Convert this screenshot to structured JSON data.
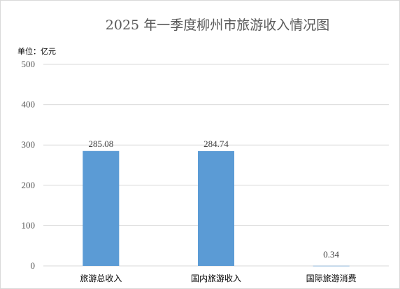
{
  "chart_data": {
    "type": "bar",
    "title": "2025 年一季度柳州市旅游收入情况图",
    "unit_label": "单位：亿元",
    "categories": [
      "旅游总收入",
      "国内旅游收入",
      "国际旅游消费"
    ],
    "values": [
      285.08,
      284.74,
      0.34
    ],
    "data_labels": [
      "285.08",
      "284.74",
      "0.34"
    ],
    "ylim": [
      0,
      500
    ],
    "yticks": [
      "0",
      "100",
      "200",
      "300",
      "400",
      "500"
    ],
    "grid": true,
    "bar_color": "#5b9bd5"
  }
}
